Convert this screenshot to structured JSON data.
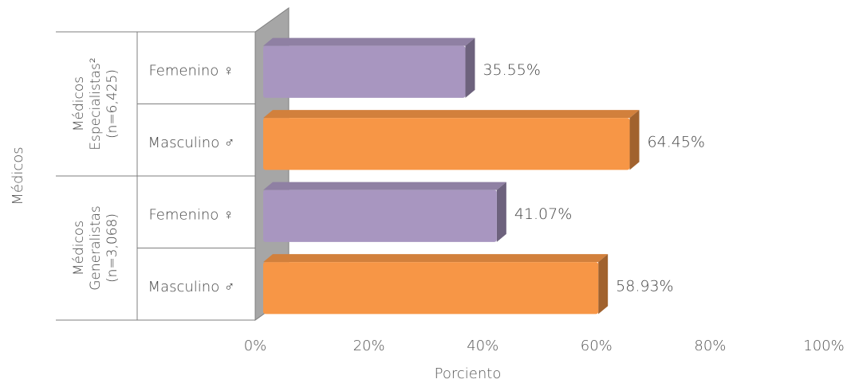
{
  "chart_data": {
    "type": "bar",
    "orientation": "horizontal",
    "xlabel": "Porciento",
    "ylabel": "Médicos",
    "xlim": [
      0,
      100
    ],
    "x_ticks": [
      "0%",
      "20%",
      "40%",
      "60%",
      "80%",
      "100%"
    ],
    "grid": false,
    "legend": "none",
    "groups": [
      {
        "label_lines": [
          "Médicos",
          "Especialistas²",
          "(n=6,425)"
        ],
        "bars": [
          {
            "category": "Femenino ♀",
            "value": 35.55,
            "label": "35.55%",
            "color": "#A896C0"
          },
          {
            "category": "Masculino ♂",
            "value": 64.45,
            "label": "64.45%",
            "color": "#F79646"
          }
        ]
      },
      {
        "label_lines": [
          "Médicos",
          "Generalistas",
          "(n=3,068)"
        ],
        "bars": [
          {
            "category": "Femenino ♀",
            "value": 41.07,
            "label": "41.07%",
            "color": "#A896C0"
          },
          {
            "category": "Masculino ♂",
            "value": 58.93,
            "label": "58.93%",
            "color": "#F79646"
          }
        ]
      }
    ]
  }
}
